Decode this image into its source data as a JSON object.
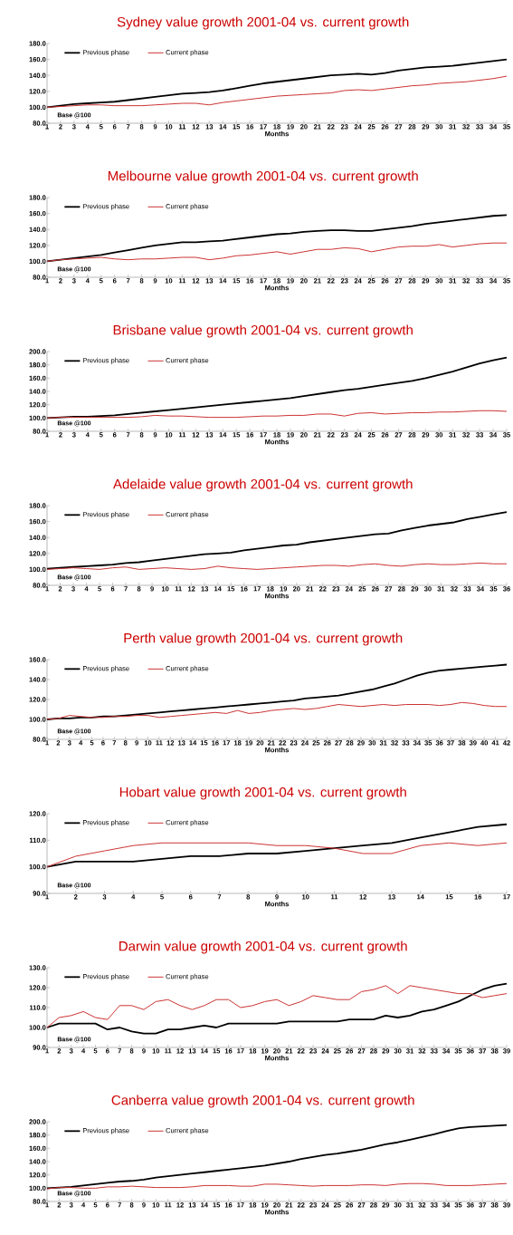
{
  "chart_data": [
    {
      "type": "line",
      "title": "Sydney value growth 2001-04 vs. current growth",
      "xlabel": "Months",
      "legend": "top left",
      "annotations": [
        "Base @100"
      ],
      "categories": [
        "1",
        "2",
        "3",
        "4",
        "5",
        "6",
        "7",
        "8",
        "9",
        "10",
        "11",
        "12",
        "13",
        "14",
        "15",
        "16",
        "17",
        "18",
        "19",
        "20",
        "21",
        "22",
        "23",
        "24",
        "25",
        "26",
        "27",
        "28",
        "29",
        "30",
        "31",
        "32",
        "33",
        "34",
        "35"
      ],
      "ylim": [
        80,
        180
      ],
      "yticks": [
        {
          "value": 80,
          "label": "80.0"
        },
        {
          "value": 100,
          "label": "100.0"
        },
        {
          "value": 120,
          "label": "120.0"
        },
        {
          "value": 140,
          "label": "140.0"
        },
        {
          "value": 160,
          "label": "160.0"
        },
        {
          "value": 180,
          "label": "180.0"
        }
      ],
      "series": [
        {
          "name": "Previous phase",
          "color": "#000000",
          "values": [
            100,
            102,
            104,
            105,
            106,
            107,
            109,
            111,
            113,
            115,
            117,
            118,
            119,
            121,
            124,
            127,
            130,
            132,
            134,
            136,
            138,
            140,
            141,
            142,
            141,
            143,
            146,
            148,
            150,
            151,
            152,
            154,
            156,
            158,
            160
          ]
        },
        {
          "name": "Current phase",
          "color": "#cc3333",
          "values": [
            100,
            101,
            102,
            103,
            103,
            102,
            102,
            102,
            103,
            104,
            105,
            105,
            103,
            106,
            108,
            110,
            112,
            114,
            115,
            116,
            117,
            118,
            121,
            122,
            121,
            123,
            125,
            127,
            128,
            130,
            131,
            132,
            134,
            136,
            139
          ]
        }
      ]
    },
    {
      "type": "line",
      "title": "Melbourne value growth 2001-04 vs. current growth",
      "xlabel": "Months",
      "legend": "top left",
      "annotations": [
        "Base @100"
      ],
      "categories": [
        "1",
        "2",
        "3",
        "4",
        "5",
        "6",
        "7",
        "8",
        "9",
        "10",
        "11",
        "12",
        "13",
        "14",
        "15",
        "16",
        "17",
        "18",
        "19",
        "20",
        "21",
        "22",
        "23",
        "24",
        "25",
        "26",
        "27",
        "28",
        "29",
        "30",
        "31",
        "32",
        "33",
        "34",
        "35"
      ],
      "ylim": [
        80,
        180
      ],
      "yticks": [
        {
          "value": 80,
          "label": "80.0"
        },
        {
          "value": 100,
          "label": "100.0"
        },
        {
          "value": 120,
          "label": "120.0"
        },
        {
          "value": 140,
          "label": "140.0"
        },
        {
          "value": 160,
          "label": "160.0"
        },
        {
          "value": 180,
          "label": "180.0"
        }
      ],
      "series": [
        {
          "name": "Previous phase",
          "color": "#000000",
          "values": [
            100,
            102,
            104,
            106,
            108,
            111,
            114,
            117,
            120,
            122,
            124,
            124,
            125,
            126,
            128,
            130,
            132,
            134,
            135,
            137,
            138,
            139,
            139,
            138,
            138,
            140,
            142,
            144,
            147,
            149,
            151,
            153,
            155,
            157,
            158
          ]
        },
        {
          "name": "Current phase",
          "color": "#cc3333",
          "values": [
            100,
            102,
            103,
            104,
            105,
            103,
            102,
            103,
            103,
            104,
            105,
            105,
            102,
            104,
            107,
            108,
            110,
            112,
            109,
            112,
            115,
            115,
            117,
            116,
            112,
            115,
            118,
            119,
            119,
            121,
            118,
            120,
            122,
            123,
            123
          ]
        }
      ]
    },
    {
      "type": "line",
      "title": "Brisbane value growth 2001-04 vs. current growth",
      "xlabel": "Months",
      "legend": "top left",
      "annotations": [
        "Base @100"
      ],
      "categories": [
        "1",
        "2",
        "3",
        "4",
        "5",
        "6",
        "7",
        "8",
        "9",
        "10",
        "11",
        "12",
        "13",
        "14",
        "15",
        "16",
        "17",
        "18",
        "19",
        "20",
        "21",
        "22",
        "23",
        "24",
        "25",
        "26",
        "27",
        "28",
        "29",
        "30",
        "31",
        "32",
        "33",
        "34",
        "35"
      ],
      "ylim": [
        80,
        200
      ],
      "yticks": [
        {
          "value": 80,
          "label": "80.0"
        },
        {
          "value": 100,
          "label": "100.0"
        },
        {
          "value": 120,
          "label": "120.0"
        },
        {
          "value": 140,
          "label": "140.0"
        },
        {
          "value": 160,
          "label": "160.0"
        },
        {
          "value": 180,
          "label": "180.0"
        },
        {
          "value": 200,
          "label": "200.0"
        }
      ],
      "series": [
        {
          "name": "Previous phase",
          "color": "#000000",
          "values": [
            100,
            101,
            102,
            102,
            103,
            104,
            106,
            108,
            110,
            112,
            114,
            116,
            118,
            120,
            122,
            124,
            126,
            128,
            130,
            133,
            136,
            139,
            142,
            144,
            147,
            150,
            153,
            156,
            160,
            165,
            170,
            176,
            182,
            187,
            191
          ]
        },
        {
          "name": "Current phase",
          "color": "#cc3333",
          "values": [
            100,
            101,
            101,
            101,
            101,
            101,
            101,
            102,
            104,
            103,
            103,
            102,
            101,
            101,
            101,
            102,
            103,
            103,
            104,
            104,
            106,
            106,
            103,
            107,
            108,
            106,
            107,
            108,
            108,
            109,
            109,
            110,
            111,
            111,
            110
          ]
        }
      ]
    },
    {
      "type": "line",
      "title": "Adelaide value growth 2001-04 vs. current growth",
      "xlabel": "Months",
      "legend": "top left",
      "annotations": [
        "Base @100"
      ],
      "categories": [
        "1",
        "2",
        "3",
        "4",
        "5",
        "6",
        "7",
        "8",
        "9",
        "10",
        "11",
        "12",
        "13",
        "14",
        "15",
        "16",
        "17",
        "18",
        "19",
        "20",
        "21",
        "22",
        "23",
        "24",
        "25",
        "26",
        "27",
        "28",
        "29",
        "30",
        "31",
        "32",
        "33",
        "34",
        "35",
        "36"
      ],
      "ylim": [
        80,
        180
      ],
      "yticks": [
        {
          "value": 80,
          "label": "80.0"
        },
        {
          "value": 100,
          "label": "100.0"
        },
        {
          "value": 120,
          "label": "120.0"
        },
        {
          "value": 140,
          "label": "140.0"
        },
        {
          "value": 160,
          "label": "160.0"
        },
        {
          "value": 180,
          "label": "180.0"
        }
      ],
      "series": [
        {
          "name": "Previous phase",
          "color": "#000000",
          "values": [
            101,
            102,
            103,
            104,
            105,
            106,
            108,
            109,
            111,
            113,
            115,
            117,
            119,
            120,
            121,
            124,
            126,
            128,
            130,
            131,
            134,
            136,
            138,
            140,
            142,
            144,
            145,
            149,
            152,
            155,
            157,
            159,
            163,
            166,
            169,
            172
          ]
        },
        {
          "name": "Current phase",
          "color": "#cc3333",
          "values": [
            100,
            101,
            102,
            101,
            100,
            102,
            103,
            100,
            101,
            102,
            101,
            100,
            101,
            104,
            102,
            101,
            100,
            101,
            102,
            103,
            104,
            105,
            105,
            104,
            106,
            107,
            105,
            104,
            106,
            107,
            106,
            106,
            107,
            108,
            107,
            107
          ]
        }
      ]
    },
    {
      "type": "line",
      "title": "Perth value growth 2001-04 vs. current growth",
      "xlabel": "Months",
      "legend": "top left",
      "annotations": [
        "Base @100"
      ],
      "categories": [
        "1",
        "2",
        "3",
        "4",
        "5",
        "6",
        "7",
        "8",
        "9",
        "10",
        "11",
        "12",
        "13",
        "14",
        "15",
        "16",
        "17",
        "18",
        "19",
        "20",
        "21",
        "22",
        "23",
        "24",
        "25",
        "26",
        "27",
        "28",
        "29",
        "30",
        "31",
        "32",
        "33",
        "34",
        "35",
        "36",
        "37",
        "38",
        "39",
        "40",
        "41",
        "42"
      ],
      "ylim": [
        80,
        160
      ],
      "yticks": [
        {
          "value": 80,
          "label": "80.0"
        },
        {
          "value": 100,
          "label": "100.0"
        },
        {
          "value": 120,
          "label": "120.0"
        },
        {
          "value": 140,
          "label": "140.0"
        },
        {
          "value": 160,
          "label": "160.0"
        }
      ],
      "series": [
        {
          "name": "Previous phase",
          "color": "#000000",
          "values": [
            100,
            101,
            101,
            102,
            102,
            103,
            103,
            104,
            105,
            106,
            107,
            108,
            109,
            110,
            111,
            112,
            113,
            114,
            115,
            116,
            117,
            118,
            119,
            121,
            122,
            123,
            124,
            126,
            128,
            130,
            133,
            136,
            140,
            144,
            147,
            149,
            150,
            151,
            152,
            153,
            154,
            155
          ]
        },
        {
          "name": "Current phase",
          "color": "#cc3333",
          "values": [
            100,
            101,
            104,
            103,
            102,
            102,
            103,
            103,
            104,
            104,
            102,
            103,
            104,
            105,
            106,
            107,
            106,
            109,
            106,
            107,
            109,
            110,
            111,
            110,
            111,
            113,
            115,
            114,
            113,
            114,
            115,
            114,
            115,
            115,
            115,
            114,
            115,
            117,
            116,
            114,
            113,
            113
          ]
        }
      ]
    },
    {
      "type": "line",
      "title": "Hobart value growth 2001-04 vs. current growth",
      "xlabel": "Months",
      "legend": "top left",
      "annotations": [
        "Base @100"
      ],
      "categories": [
        "1",
        "2",
        "3",
        "4",
        "5",
        "6",
        "7",
        "8",
        "9",
        "10",
        "11",
        "12",
        "13",
        "14",
        "15",
        "16",
        "17"
      ],
      "ylim": [
        90,
        120
      ],
      "yticks": [
        {
          "value": 90,
          "label": "90.0"
        },
        {
          "value": 100,
          "label": "100.0"
        },
        {
          "value": 110,
          "label": "110.0"
        },
        {
          "value": 120,
          "label": "120.0"
        }
      ],
      "series": [
        {
          "name": "Previous phase",
          "color": "#000000",
          "values": [
            100,
            102,
            102,
            102,
            103,
            104,
            104,
            105,
            105,
            106,
            107,
            108,
            109,
            111,
            113,
            115,
            116
          ]
        },
        {
          "name": "Current phase",
          "color": "#cc3333",
          "values": [
            100,
            104,
            106,
            108,
            109,
            109,
            109,
            109,
            108,
            108,
            107,
            105,
            105,
            108,
            109,
            108,
            109
          ]
        }
      ]
    },
    {
      "type": "line",
      "title": "Darwin value growth 2001-04 vs. current growth",
      "xlabel": "Months",
      "legend": "top left",
      "annotations": [
        "Base @100"
      ],
      "categories": [
        "1",
        "2",
        "3",
        "4",
        "5",
        "6",
        "7",
        "8",
        "9",
        "10",
        "11",
        "12",
        "13",
        "14",
        "15",
        "16",
        "17",
        "18",
        "19",
        "20",
        "21",
        "22",
        "23",
        "24",
        "25",
        "26",
        "27",
        "28",
        "29",
        "30",
        "31",
        "32",
        "33",
        "34",
        "35",
        "36",
        "37",
        "38",
        "39"
      ],
      "ylim": [
        90,
        130
      ],
      "yticks": [
        {
          "value": 90,
          "label": "90.0"
        },
        {
          "value": 100,
          "label": "100.0"
        },
        {
          "value": 110,
          "label": "110.0"
        },
        {
          "value": 120,
          "label": "120.0"
        },
        {
          "value": 130,
          "label": "130.0"
        }
      ],
      "series": [
        {
          "name": "Previous phase",
          "color": "#000000",
          "values": [
            100,
            102,
            102,
            102,
            102,
            99,
            100,
            98,
            97,
            97,
            99,
            99,
            100,
            101,
            100,
            102,
            102,
            102,
            102,
            102,
            103,
            103,
            103,
            103,
            103,
            104,
            104,
            104,
            106,
            105,
            106,
            108,
            109,
            111,
            113,
            116,
            119,
            121,
            122
          ]
        },
        {
          "name": "Current phase",
          "color": "#cc3333",
          "values": [
            100,
            105,
            106,
            108,
            105,
            104,
            111,
            111,
            109,
            113,
            114,
            111,
            109,
            111,
            114,
            114,
            110,
            111,
            113,
            114,
            111,
            113,
            116,
            115,
            114,
            114,
            118,
            119,
            121,
            117,
            121,
            120,
            119,
            118,
            117,
            117,
            115,
            116,
            117
          ]
        }
      ]
    },
    {
      "type": "line",
      "title": "Canberra value growth 2001-04 vs. current growth",
      "xlabel": "Months",
      "legend": "top left",
      "annotations": [
        "Base @100"
      ],
      "categories": [
        "1",
        "2",
        "3",
        "4",
        "5",
        "6",
        "7",
        "8",
        "9",
        "10",
        "11",
        "12",
        "13",
        "14",
        "15",
        "16",
        "17",
        "18",
        "19",
        "20",
        "21",
        "22",
        "23",
        "24",
        "25",
        "26",
        "27",
        "28",
        "29",
        "30",
        "31",
        "32",
        "33",
        "34",
        "35",
        "36",
        "37",
        "38",
        "39"
      ],
      "ylim": [
        80,
        200
      ],
      "yticks": [
        {
          "value": 80,
          "label": "80.0"
        },
        {
          "value": 100,
          "label": "100.0"
        },
        {
          "value": 120,
          "label": "120.0"
        },
        {
          "value": 140,
          "label": "140.0"
        },
        {
          "value": 160,
          "label": "160.0"
        },
        {
          "value": 180,
          "label": "180.0"
        },
        {
          "value": 200,
          "label": "200.0"
        }
      ],
      "series": [
        {
          "name": "Previous phase",
          "color": "#000000",
          "values": [
            100,
            101,
            102,
            104,
            106,
            108,
            110,
            111,
            113,
            116,
            118,
            120,
            122,
            124,
            126,
            128,
            130,
            132,
            134,
            137,
            140,
            144,
            147,
            150,
            152,
            155,
            158,
            162,
            166,
            169,
            173,
            177,
            181,
            186,
            190,
            192,
            193,
            194,
            195
          ]
        },
        {
          "name": "Current phase",
          "color": "#cc3333",
          "values": [
            99,
            101,
            101,
            100,
            100,
            102,
            102,
            103,
            102,
            101,
            101,
            101,
            102,
            104,
            104,
            104,
            103,
            103,
            106,
            106,
            105,
            104,
            103,
            104,
            104,
            104,
            105,
            105,
            104,
            106,
            107,
            107,
            106,
            104,
            104,
            104,
            105,
            106,
            107
          ]
        }
      ]
    }
  ]
}
